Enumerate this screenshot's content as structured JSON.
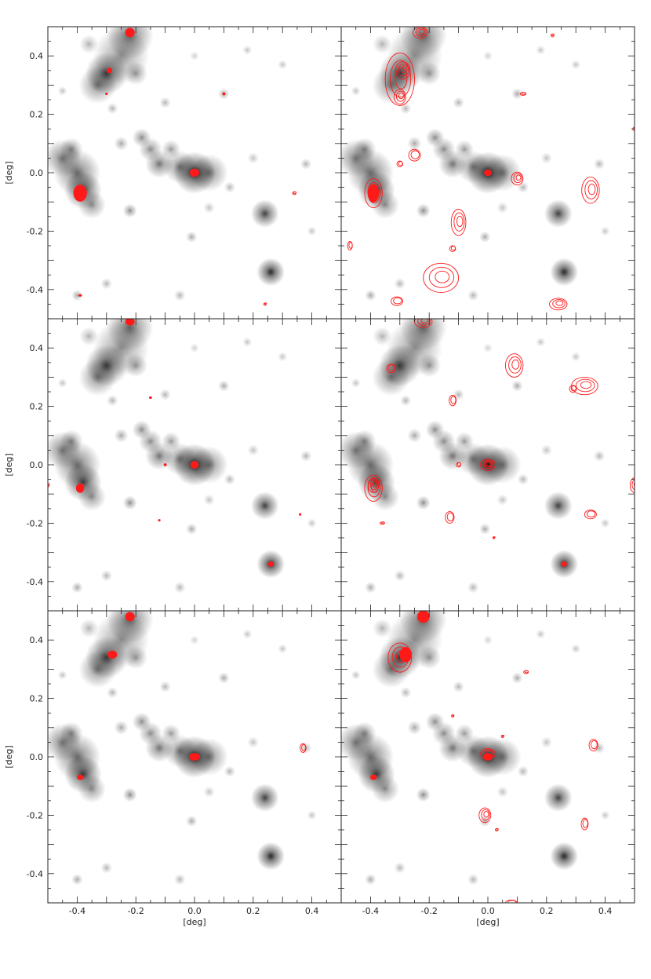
{
  "figure": {
    "grid": false,
    "rows": 3,
    "cols": 2
  },
  "chart_data": {
    "type": "scatter",
    "description_of_marks": "grayscale source map with red detection contours",
    "x_axis": {
      "label": "[deg]",
      "ticks": [
        "-0.4",
        "-0.2",
        "0.0",
        "0.2",
        "0.4"
      ],
      "tick_values": [
        -0.4,
        -0.2,
        0.0,
        0.2,
        0.4
      ],
      "range": [
        -0.5,
        0.5
      ]
    },
    "y_axis": {
      "label": "[deg]",
      "ticks": [
        "-0.4",
        "-0.2",
        "0.0",
        "0.2",
        "0.4"
      ],
      "tick_values": [
        -0.4,
        -0.2,
        0.0,
        0.2,
        0.4
      ],
      "range": [
        -0.5,
        0.5
      ]
    },
    "gray_sources": [
      {
        "x": -0.22,
        "y": 0.47,
        "s": 0.05,
        "v": 0.6
      },
      {
        "x": -0.25,
        "y": 0.4,
        "s": 0.06,
        "v": 0.45
      },
      {
        "x": -0.3,
        "y": 0.34,
        "s": 0.045,
        "v": 0.75
      },
      {
        "x": -0.33,
        "y": 0.3,
        "s": 0.04,
        "v": 0.5
      },
      {
        "x": -0.2,
        "y": 0.34,
        "s": 0.025,
        "v": 0.4
      },
      {
        "x": -0.36,
        "y": 0.44,
        "s": 0.02,
        "v": 0.3
      },
      {
        "x": -0.45,
        "y": 0.05,
        "s": 0.04,
        "v": 0.55
      },
      {
        "x": -0.4,
        "y": 0.0,
        "s": 0.05,
        "v": 0.6
      },
      {
        "x": -0.38,
        "y": -0.06,
        "s": 0.04,
        "v": 0.75
      },
      {
        "x": -0.42,
        "y": 0.08,
        "s": 0.025,
        "v": 0.45
      },
      {
        "x": -0.35,
        "y": -0.11,
        "s": 0.03,
        "v": 0.45
      },
      {
        "x": -0.15,
        "y": 0.08,
        "s": 0.025,
        "v": 0.45
      },
      {
        "x": -0.12,
        "y": 0.03,
        "s": 0.03,
        "v": 0.55
      },
      {
        "x": -0.05,
        "y": 0.02,
        "s": 0.035,
        "v": 0.5
      },
      {
        "x": 0.0,
        "y": 0.0,
        "s": 0.045,
        "v": 0.9
      },
      {
        "x": 0.05,
        "y": 0.0,
        "s": 0.04,
        "v": 0.5
      },
      {
        "x": -0.08,
        "y": 0.08,
        "s": 0.02,
        "v": 0.4
      },
      {
        "x": -0.18,
        "y": 0.12,
        "s": 0.02,
        "v": 0.45
      },
      {
        "x": -0.25,
        "y": 0.1,
        "s": 0.015,
        "v": 0.35
      },
      {
        "x": 0.24,
        "y": -0.14,
        "s": 0.03,
        "v": 0.75
      },
      {
        "x": 0.26,
        "y": -0.34,
        "s": 0.03,
        "v": 0.85
      },
      {
        "x": -0.22,
        "y": -0.13,
        "s": 0.015,
        "v": 0.45
      },
      {
        "x": -0.01,
        "y": -0.22,
        "s": 0.012,
        "v": 0.35
      },
      {
        "x": 0.1,
        "y": 0.27,
        "s": 0.012,
        "v": 0.35
      },
      {
        "x": -0.3,
        "y": -0.38,
        "s": 0.012,
        "v": 0.3
      },
      {
        "x": -0.4,
        "y": -0.42,
        "s": 0.012,
        "v": 0.35
      },
      {
        "x": 0.38,
        "y": 0.03,
        "s": 0.012,
        "v": 0.3
      },
      {
        "x": 0.2,
        "y": 0.05,
        "s": 0.012,
        "v": 0.25
      },
      {
        "x": 0.12,
        "y": -0.05,
        "s": 0.012,
        "v": 0.3
      },
      {
        "x": -0.05,
        "y": -0.42,
        "s": 0.012,
        "v": 0.3
      },
      {
        "x": 0.3,
        "y": 0.37,
        "s": 0.01,
        "v": 0.25
      },
      {
        "x": 0.18,
        "y": 0.42,
        "s": 0.01,
        "v": 0.25
      },
      {
        "x": -0.45,
        "y": 0.28,
        "s": 0.01,
        "v": 0.25
      },
      {
        "x": 0.4,
        "y": -0.2,
        "s": 0.01,
        "v": 0.25
      },
      {
        "x": -0.1,
        "y": 0.24,
        "s": 0.012,
        "v": 0.3
      },
      {
        "x": 0.05,
        "y": -0.12,
        "s": 0.012,
        "v": 0.25
      },
      {
        "x": -0.28,
        "y": 0.22,
        "s": 0.012,
        "v": 0.3
      },
      {
        "x": 0.0,
        "y": 0.4,
        "s": 0.01,
        "v": 0.2
      }
    ],
    "panels": [
      {
        "id": "row1-left",
        "contours": [
          {
            "x": -0.22,
            "y": 0.48,
            "rx": 0.015,
            "ry": 0.015,
            "filled": true
          },
          {
            "x": -0.29,
            "y": 0.35,
            "rx": 0.008,
            "ry": 0.008,
            "filled": true
          },
          {
            "x": -0.39,
            "y": -0.07,
            "rx": 0.022,
            "ry": 0.028,
            "filled": true
          },
          {
            "x": 0.0,
            "y": 0.0,
            "rx": 0.015,
            "ry": 0.013,
            "filled": true
          },
          {
            "x": 0.1,
            "y": 0.27,
            "rx": 0.004,
            "ry": 0.004,
            "filled": true
          },
          {
            "x": 0.34,
            "y": -0.07,
            "rx": 0.006,
            "ry": 0.005,
            "filled": false
          },
          {
            "x": 0.24,
            "y": -0.45,
            "rx": 0.004,
            "ry": 0.004,
            "filled": false
          },
          {
            "x": -0.39,
            "y": -0.42,
            "rx": 0.005,
            "ry": 0.003,
            "filled": true
          },
          {
            "x": -0.3,
            "y": 0.27,
            "rx": 0.003,
            "ry": 0.003,
            "filled": true
          }
        ]
      },
      {
        "id": "row1-right",
        "contours": [
          {
            "x": -0.23,
            "y": 0.48,
            "rx": 0.025,
            "ry": 0.02,
            "filled": false
          },
          {
            "x": -0.3,
            "y": 0.32,
            "rx": 0.05,
            "ry": 0.09,
            "filled": false
          },
          {
            "x": -0.29,
            "y": 0.35,
            "rx": 0.025,
            "ry": 0.03,
            "filled": false
          },
          {
            "x": -0.3,
            "y": 0.26,
            "rx": 0.02,
            "ry": 0.025,
            "filled": false
          },
          {
            "x": -0.39,
            "y": -0.07,
            "rx": 0.03,
            "ry": 0.05,
            "filled": false
          },
          {
            "x": -0.39,
            "y": -0.07,
            "rx": 0.018,
            "ry": 0.03,
            "filled": true
          },
          {
            "x": -0.25,
            "y": 0.06,
            "rx": 0.02,
            "ry": 0.02,
            "filled": false
          },
          {
            "x": -0.3,
            "y": 0.03,
            "rx": 0.01,
            "ry": 0.01,
            "filled": false
          },
          {
            "x": 0.0,
            "y": 0.0,
            "rx": 0.012,
            "ry": 0.01,
            "filled": true
          },
          {
            "x": 0.1,
            "y": -0.02,
            "rx": 0.02,
            "ry": 0.022,
            "filled": false
          },
          {
            "x": 0.35,
            "y": -0.06,
            "rx": 0.03,
            "ry": 0.045,
            "filled": false
          },
          {
            "x": -0.1,
            "y": -0.17,
            "rx": 0.025,
            "ry": 0.045,
            "filled": false
          },
          {
            "x": -0.16,
            "y": -0.36,
            "rx": 0.06,
            "ry": 0.05,
            "filled": false
          },
          {
            "x": 0.24,
            "y": -0.45,
            "rx": 0.03,
            "ry": 0.02,
            "filled": false
          },
          {
            "x": -0.31,
            "y": -0.44,
            "rx": 0.02,
            "ry": 0.015,
            "filled": false
          },
          {
            "x": -0.47,
            "y": -0.25,
            "rx": 0.008,
            "ry": 0.015,
            "filled": false
          },
          {
            "x": 0.12,
            "y": 0.27,
            "rx": 0.01,
            "ry": 0.005,
            "filled": false
          },
          {
            "x": 0.22,
            "y": 0.47,
            "rx": 0.005,
            "ry": 0.005,
            "filled": false
          },
          {
            "x": 0.5,
            "y": 0.15,
            "rx": 0.006,
            "ry": 0.006,
            "filled": false
          },
          {
            "x": -0.12,
            "y": -0.26,
            "rx": 0.01,
            "ry": 0.01,
            "filled": false
          }
        ]
      },
      {
        "id": "row2-left",
        "contours": [
          {
            "x": -0.22,
            "y": 0.49,
            "rx": 0.015,
            "ry": 0.012,
            "filled": true
          },
          {
            "x": -0.39,
            "y": -0.08,
            "rx": 0.013,
            "ry": 0.015,
            "filled": true
          },
          {
            "x": 0.0,
            "y": 0.0,
            "rx": 0.013,
            "ry": 0.012,
            "filled": true
          },
          {
            "x": -0.1,
            "y": 0.0,
            "rx": 0.004,
            "ry": 0.004,
            "filled": true
          },
          {
            "x": 0.26,
            "y": -0.34,
            "rx": 0.008,
            "ry": 0.008,
            "filled": true
          },
          {
            "x": -0.15,
            "y": 0.23,
            "rx": 0.004,
            "ry": 0.003,
            "filled": true
          },
          {
            "x": -0.12,
            "y": -0.19,
            "rx": 0.003,
            "ry": 0.003,
            "filled": true
          },
          {
            "x": 0.36,
            "y": -0.17,
            "rx": 0.003,
            "ry": 0.003,
            "filled": true
          },
          {
            "x": -0.5,
            "y": -0.07,
            "rx": 0.004,
            "ry": 0.006,
            "filled": false
          }
        ]
      },
      {
        "id": "row2-right",
        "contours": [
          {
            "x": -0.22,
            "y": 0.49,
            "rx": 0.03,
            "ry": 0.02,
            "filled": false
          },
          {
            "x": -0.33,
            "y": 0.33,
            "rx": 0.015,
            "ry": 0.015,
            "filled": false
          },
          {
            "x": -0.39,
            "y": -0.08,
            "rx": 0.03,
            "ry": 0.045,
            "filled": false
          },
          {
            "x": -0.39,
            "y": -0.07,
            "rx": 0.018,
            "ry": 0.025,
            "filled": false
          },
          {
            "x": 0.0,
            "y": 0.0,
            "rx": 0.025,
            "ry": 0.02,
            "filled": false
          },
          {
            "x": 0.0,
            "y": 0.0,
            "rx": 0.012,
            "ry": 0.012,
            "filled": false
          },
          {
            "x": -0.12,
            "y": 0.22,
            "rx": 0.012,
            "ry": 0.018,
            "filled": false
          },
          {
            "x": 0.09,
            "y": 0.34,
            "rx": 0.03,
            "ry": 0.04,
            "filled": false
          },
          {
            "x": 0.33,
            "y": 0.27,
            "rx": 0.045,
            "ry": 0.03,
            "filled": false
          },
          {
            "x": 0.29,
            "y": 0.26,
            "rx": 0.012,
            "ry": 0.012,
            "filled": false
          },
          {
            "x": -0.13,
            "y": -0.18,
            "rx": 0.015,
            "ry": 0.02,
            "filled": false
          },
          {
            "x": 0.35,
            "y": -0.17,
            "rx": 0.02,
            "ry": 0.015,
            "filled": false
          },
          {
            "x": 0.5,
            "y": -0.07,
            "rx": 0.015,
            "ry": 0.025,
            "filled": false
          },
          {
            "x": 0.26,
            "y": -0.34,
            "rx": 0.008,
            "ry": 0.008,
            "filled": true
          },
          {
            "x": -0.1,
            "y": 0.0,
            "rx": 0.008,
            "ry": 0.008,
            "filled": false
          },
          {
            "x": -0.36,
            "y": -0.2,
            "rx": 0.008,
            "ry": 0.004,
            "filled": false
          },
          {
            "x": 0.02,
            "y": -0.25,
            "rx": 0.003,
            "ry": 0.003,
            "filled": false
          }
        ]
      },
      {
        "id": "row3-left",
        "contours": [
          {
            "x": -0.22,
            "y": 0.48,
            "rx": 0.015,
            "ry": 0.015,
            "filled": true
          },
          {
            "x": -0.28,
            "y": 0.35,
            "rx": 0.015,
            "ry": 0.013,
            "filled": true
          },
          {
            "x": -0.39,
            "y": -0.07,
            "rx": 0.01,
            "ry": 0.008,
            "filled": true
          },
          {
            "x": 0.0,
            "y": 0.0,
            "rx": 0.018,
            "ry": 0.012,
            "filled": true
          },
          {
            "x": 0.37,
            "y": 0.03,
            "rx": 0.01,
            "ry": 0.015,
            "filled": false
          }
        ]
      },
      {
        "id": "row3-right",
        "contours": [
          {
            "x": -0.22,
            "y": 0.48,
            "rx": 0.02,
            "ry": 0.02,
            "filled": true
          },
          {
            "x": -0.3,
            "y": 0.34,
            "rx": 0.04,
            "ry": 0.05,
            "filled": false
          },
          {
            "x": -0.28,
            "y": 0.35,
            "rx": 0.02,
            "ry": 0.025,
            "filled": true
          },
          {
            "x": -0.39,
            "y": -0.07,
            "rx": 0.01,
            "ry": 0.008,
            "filled": true
          },
          {
            "x": 0.0,
            "y": 0.01,
            "rx": 0.025,
            "ry": 0.018,
            "filled": false
          },
          {
            "x": 0.0,
            "y": 0.0,
            "rx": 0.015,
            "ry": 0.012,
            "filled": true
          },
          {
            "x": 0.36,
            "y": 0.04,
            "rx": 0.015,
            "ry": 0.02,
            "filled": false
          },
          {
            "x": 0.13,
            "y": 0.29,
            "rx": 0.008,
            "ry": 0.005,
            "filled": false
          },
          {
            "x": -0.01,
            "y": -0.2,
            "rx": 0.02,
            "ry": 0.025,
            "filled": false
          },
          {
            "x": 0.33,
            "y": -0.23,
            "rx": 0.012,
            "ry": 0.02,
            "filled": false
          },
          {
            "x": 0.08,
            "y": -0.5,
            "rx": 0.02,
            "ry": 0.01,
            "filled": false
          },
          {
            "x": 0.05,
            "y": 0.07,
            "rx": 0.004,
            "ry": 0.004,
            "filled": false
          },
          {
            "x": -0.12,
            "y": 0.14,
            "rx": 0.004,
            "ry": 0.004,
            "filled": false
          },
          {
            "x": 0.03,
            "y": -0.25,
            "rx": 0.005,
            "ry": 0.004,
            "filled": false
          }
        ]
      }
    ]
  },
  "colors": {
    "contour": "#ff1a1a",
    "axis": "#222222",
    "background": "#ffffff"
  }
}
